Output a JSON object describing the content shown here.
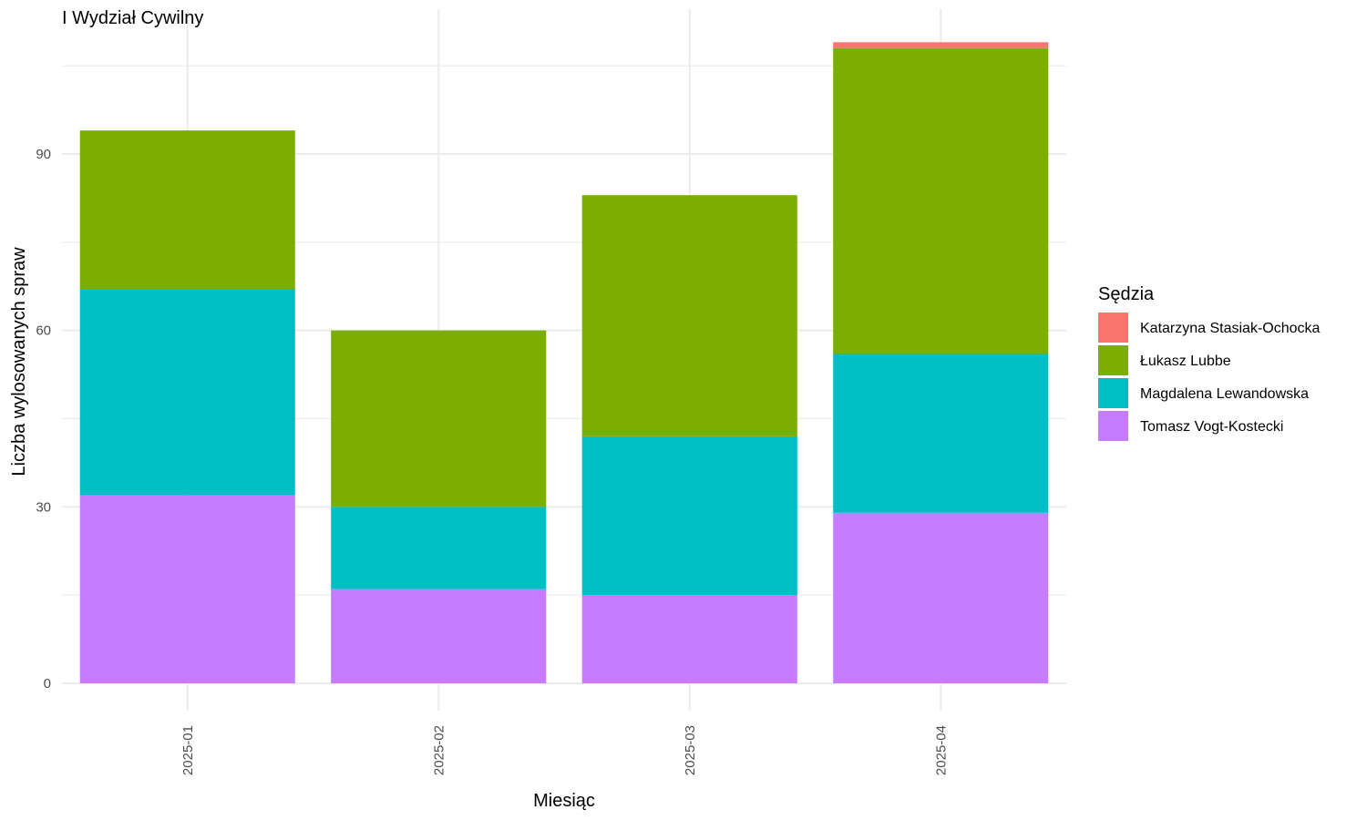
{
  "chart_data": {
    "type": "bar",
    "stacked": true,
    "title": "I Wydział Cywilny",
    "xlabel": "Miesiąc",
    "ylabel": "Liczba wylosowanych spraw",
    "categories": [
      "2025-01",
      "2025-02",
      "2025-03",
      "2025-04"
    ],
    "ylim": [
      0,
      110
    ],
    "yticks": [
      0,
      30,
      60,
      90
    ],
    "grid": true,
    "legend": {
      "title": "Sędzia",
      "position": "right"
    },
    "series": [
      {
        "name": "Tomasz Vogt-Kostecki",
        "color": "#C77CFF",
        "values": [
          32,
          16,
          15,
          29
        ]
      },
      {
        "name": "Magdalena Lewandowska",
        "color": "#00BFC4",
        "values": [
          35,
          14,
          27,
          27
        ]
      },
      {
        "name": "Łukasz Lubbe",
        "color": "#7CAE00",
        "values": [
          27,
          30,
          41,
          52
        ]
      },
      {
        "name": "Katarzyna Stasiak-Ochocka",
        "color": "#F8766D",
        "values": [
          0,
          0,
          0,
          1
        ]
      }
    ],
    "legend_order": [
      "Katarzyna Stasiak-Ochocka",
      "Łukasz Lubbe",
      "Magdalena Lewandowska",
      "Tomasz Vogt-Kostecki"
    ]
  }
}
